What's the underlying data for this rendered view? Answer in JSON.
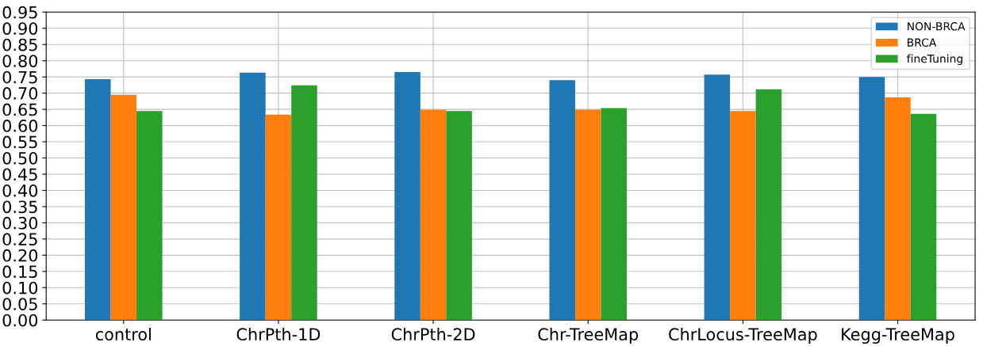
{
  "chart_data": {
    "type": "bar",
    "categories": [
      "control",
      "ChrPth-1D",
      "ChrPth-2D",
      "Chr-TreeMap",
      "ChrLocus-TreeMap",
      "Kegg-TreeMap"
    ],
    "series": [
      {
        "name": "NON-BRCA",
        "color": "#1f77b4",
        "values": [
          0.743,
          0.763,
          0.765,
          0.74,
          0.757,
          0.75
        ]
      },
      {
        "name": "BRCA",
        "color": "#ff7f0e",
        "values": [
          0.695,
          0.634,
          0.649,
          0.649,
          0.645,
          0.687
        ]
      },
      {
        "name": "fineTuning",
        "color": "#2ca02c",
        "values": [
          0.645,
          0.724,
          0.645,
          0.654,
          0.712,
          0.636
        ]
      }
    ],
    "ylim": [
      0,
      0.95
    ],
    "yticks": [
      {
        "value": 0,
        "label": "0.00"
      },
      {
        "value": 0.05,
        "label": "0.05"
      },
      {
        "value": 0.1,
        "label": "0.10"
      },
      {
        "value": 0.15,
        "label": "0.15"
      },
      {
        "value": 0.2,
        "label": "0.20"
      },
      {
        "value": 0.25,
        "label": "0.25"
      },
      {
        "value": 0.3,
        "label": "0.30"
      },
      {
        "value": 0.35,
        "label": "0.35"
      },
      {
        "value": 0.4,
        "label": "0.40"
      },
      {
        "value": 0.45,
        "label": "0.45"
      },
      {
        "value": 0.5,
        "label": "0.50"
      },
      {
        "value": 0.55,
        "label": "0.55"
      },
      {
        "value": 0.6,
        "label": "0.60"
      },
      {
        "value": 0.65,
        "label": "0.65"
      },
      {
        "value": 0.7,
        "label": "0.70"
      },
      {
        "value": 0.75,
        "label": "0.75"
      },
      {
        "value": 0.8,
        "label": "0.80"
      },
      {
        "value": 0.85,
        "label": "0.85"
      },
      {
        "value": 0.9,
        "label": "0.90"
      },
      {
        "value": 0.95,
        "label": "0.95"
      }
    ],
    "grid": true,
    "legend": "top right"
  }
}
